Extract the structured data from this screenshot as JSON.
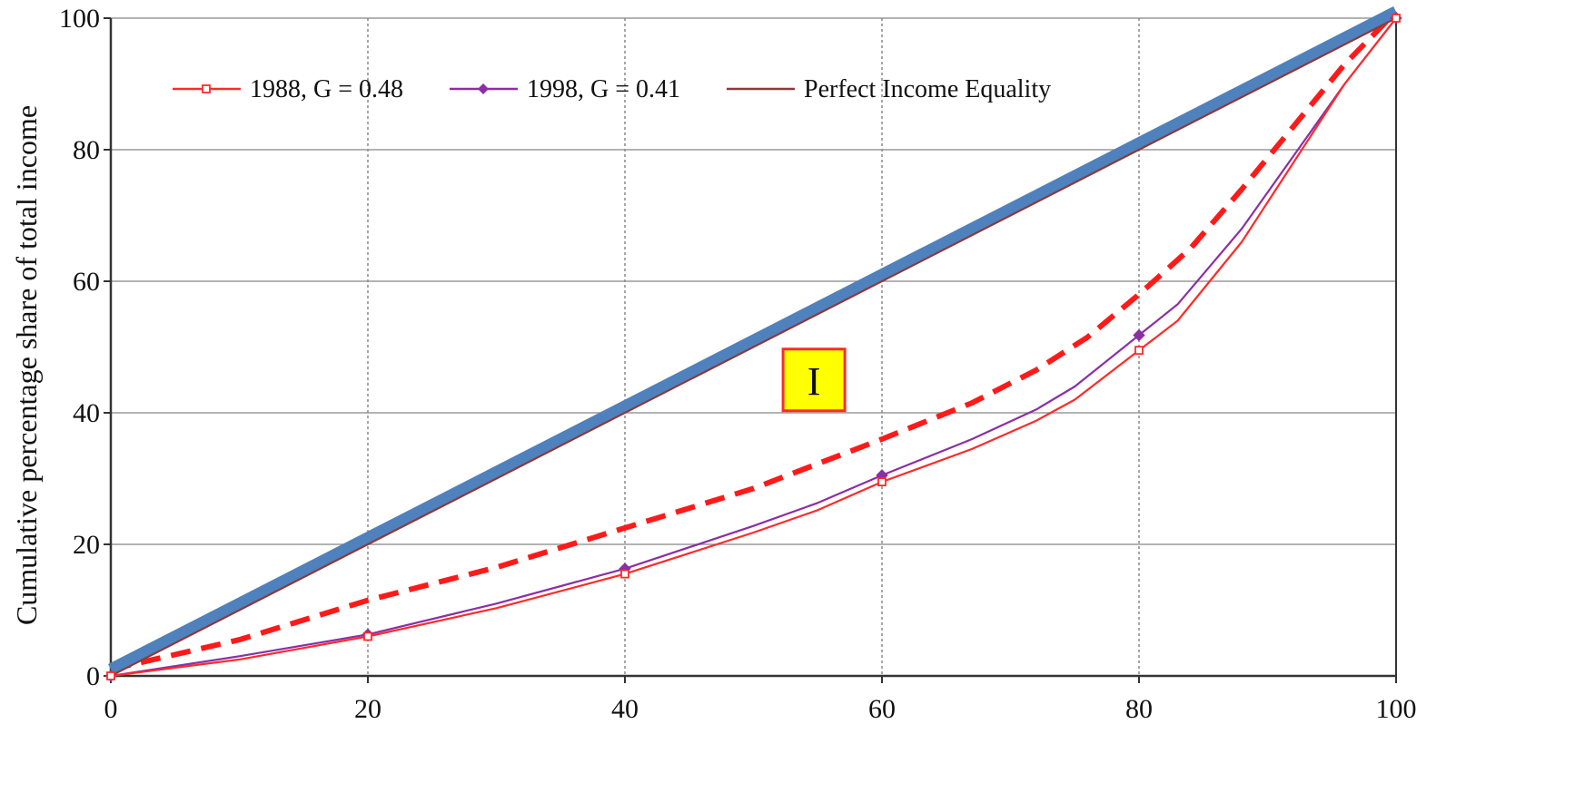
{
  "chart_data": {
    "type": "line",
    "ylabel": "Cumulative percentage share of total  income",
    "xlabel": "",
    "xlim": [
      0,
      100
    ],
    "ylim": [
      0,
      100
    ],
    "x_ticks": [
      0,
      20,
      40,
      60,
      80,
      100
    ],
    "y_ticks": [
      0,
      20,
      40,
      60,
      80,
      100
    ],
    "grid": true,
    "legend_position": "top-left",
    "series": [
      {
        "name": "1988, G = 0.48",
        "legend": true,
        "color": "#ff2a2a",
        "marker": "open-square",
        "style": "solid",
        "markers_at": [
          0,
          20,
          40,
          60,
          80,
          100
        ],
        "points": [
          [
            0,
            0
          ],
          [
            10,
            2.5
          ],
          [
            20,
            6
          ],
          [
            30,
            10.3
          ],
          [
            40,
            15.5
          ],
          [
            50,
            21.8
          ],
          [
            55,
            25.2
          ],
          [
            60,
            29.5
          ],
          [
            67,
            34.5
          ],
          [
            72,
            38.8
          ],
          [
            75,
            42
          ],
          [
            80,
            49.5
          ],
          [
            83,
            54
          ],
          [
            88,
            66
          ],
          [
            92,
            78
          ],
          [
            96,
            90
          ],
          [
            100,
            100
          ]
        ]
      },
      {
        "name": "1998, G = 0.41",
        "legend": true,
        "color": "#8b2fa5",
        "marker": "diamond",
        "style": "solid",
        "markers_at": [
          0,
          20,
          40,
          60,
          80,
          100
        ],
        "points": [
          [
            0,
            0
          ],
          [
            10,
            3
          ],
          [
            20,
            6.3
          ],
          [
            30,
            11
          ],
          [
            40,
            16.3
          ],
          [
            50,
            22.8
          ],
          [
            55,
            26.3
          ],
          [
            60,
            30.5
          ],
          [
            67,
            36
          ],
          [
            72,
            40.5
          ],
          [
            75,
            44
          ],
          [
            80,
            51.8
          ],
          [
            83,
            56.5
          ],
          [
            88,
            68
          ],
          [
            92,
            79
          ],
          [
            96,
            90
          ],
          [
            100,
            100
          ]
        ]
      },
      {
        "name": "Perfect Income Equality",
        "legend": true,
        "color": "#8b3a3a",
        "marker": "none",
        "style": "solid",
        "points": [
          [
            0,
            0
          ],
          [
            100,
            100
          ]
        ]
      },
      {
        "legend": false,
        "color": "#4f81bd",
        "marker": "none",
        "style": "thick",
        "points": [
          [
            0,
            1
          ],
          [
            100,
            101
          ]
        ]
      },
      {
        "legend": false,
        "color": "#ff1a1a",
        "marker": "none",
        "style": "dashed",
        "points": [
          [
            0,
            1
          ],
          [
            10,
            5.5
          ],
          [
            20,
            11.5
          ],
          [
            30,
            16.5
          ],
          [
            40,
            22.5
          ],
          [
            50,
            28.5
          ],
          [
            60,
            36
          ],
          [
            67,
            41.5
          ],
          [
            72,
            46.5
          ],
          [
            76,
            51.5
          ],
          [
            80,
            58
          ],
          [
            84,
            65
          ],
          [
            88,
            74
          ],
          [
            92,
            83.5
          ],
          [
            96,
            93
          ],
          [
            100,
            101
          ]
        ]
      }
    ],
    "annotations": [
      {
        "text": "I",
        "x": 54,
        "y": 45,
        "background": "#ffff00",
        "border": "#ff2a2a"
      }
    ]
  }
}
